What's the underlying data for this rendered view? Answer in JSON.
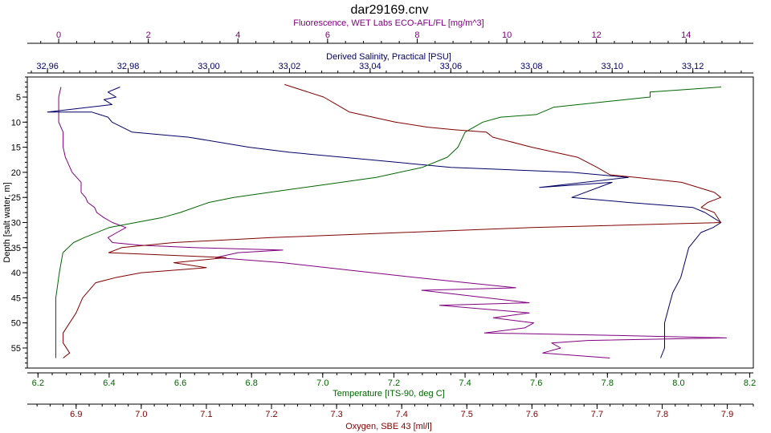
{
  "colors": {
    "fluorescence": "#800080",
    "salinity": "#000066",
    "temperature": "#006600",
    "oxygen": "#800000",
    "depth": "#000000",
    "frame": "#000000",
    "background": "#ffffff"
  },
  "chart_data": {
    "type": "line",
    "title": "dar29169.cnv",
    "grid": false,
    "legend": "none",
    "y_axis": {
      "label": "Depth [salt water, m]",
      "range": [
        1,
        59
      ],
      "inverted": true,
      "ticks": [
        5,
        10,
        15,
        20,
        25,
        30,
        35,
        40,
        45,
        50,
        55
      ]
    },
    "x_axes": [
      {
        "id": "fluorescence",
        "label": "Fluorescence, WET Labs ECO-AFL/FL [mg/m^3]",
        "position": "top",
        "range": [
          -0.7,
          15.5
        ],
        "ticks": [
          0,
          2,
          4,
          6,
          8,
          10,
          12,
          14
        ],
        "tick_labels": [
          "0",
          "2",
          "4",
          "6",
          "8",
          "10",
          "12",
          "14"
        ]
      },
      {
        "id": "salinity",
        "label": "Derived Salinity, Practical [PSU]",
        "position": "top",
        "range": [
          32.955,
          33.135
        ],
        "ticks": [
          32.96,
          32.98,
          33.0,
          33.02,
          33.04,
          33.06,
          33.08,
          33.1,
          33.12
        ],
        "tick_labels": [
          "32.96",
          "32.98",
          "33.00",
          "33.02",
          "33.04",
          "33.06",
          "33.08",
          "33.10",
          "33.12"
        ]
      },
      {
        "id": "temperature",
        "label": "Temperature [ITS-90, deg C]",
        "position": "bottom",
        "range": [
          6.17,
          8.21
        ],
        "ticks": [
          6.2,
          6.4,
          6.6,
          6.8,
          7.0,
          7.2,
          7.4,
          7.6,
          7.8,
          8.0,
          8.2
        ],
        "tick_labels": [
          "6.2",
          "6.4",
          "6.6",
          "6.8",
          "7.0",
          "7.2",
          "7.4",
          "7.6",
          "7.8",
          "8.0",
          "8.2"
        ]
      },
      {
        "id": "oxygen",
        "label": "Oxygen, SBE 43 [ml/l]",
        "position": "bottom",
        "range": [
          6.825,
          7.94
        ],
        "ticks": [
          6.9,
          7.0,
          7.1,
          7.2,
          7.3,
          7.4,
          7.5,
          7.6,
          7.7,
          7.8,
          7.9
        ],
        "tick_labels": [
          "6.9",
          "7.0",
          "7.1",
          "7.2",
          "7.3",
          "7.4",
          "7.5",
          "7.6",
          "7.7",
          "7.8",
          "7.9"
        ]
      }
    ],
    "series": [
      {
        "axis": "fluorescence",
        "color": "#800080",
        "x": [
          0.05,
          0.0,
          0.0,
          0.0,
          0.1,
          0.1,
          0.15,
          0.3,
          0.5,
          0.5,
          0.6,
          0.65,
          0.8,
          0.85,
          1.0,
          1.2,
          1.5,
          1.3,
          1.1,
          1.2,
          1.8,
          3.0,
          5.0,
          4.0,
          3.5,
          5.0,
          6.5,
          8.0,
          10.2,
          8.1,
          10.5,
          8.5,
          10.5,
          9.7,
          10.6,
          10.4,
          9.5,
          12.4,
          14.9,
          11.8,
          11.0,
          11.2,
          10.8,
          12.3
        ],
        "y": [
          3,
          5,
          8,
          10,
          12,
          15,
          17,
          20,
          22,
          24,
          25,
          26,
          27,
          28,
          29,
          30,
          31,
          32,
          33,
          34,
          34.5,
          35,
          35.5,
          36,
          37,
          38,
          39.5,
          41,
          43,
          43.5,
          46,
          46.5,
          48,
          49,
          50,
          51,
          52,
          52.5,
          53,
          53.5,
          54,
          55,
          56,
          57
        ]
      },
      {
        "axis": "salinity",
        "color": "#000066",
        "x": [
          32.978,
          32.975,
          32.977,
          32.974,
          32.976,
          32.96,
          32.971,
          32.975,
          32.976,
          32.981,
          32.995,
          33.01,
          33.02,
          33.04,
          33.06,
          33.09,
          33.104,
          33.082,
          33.1,
          33.09,
          33.104,
          33.12,
          33.123,
          33.127,
          33.125,
          33.122,
          33.121,
          33.119,
          33.118,
          33.117,
          33.115,
          33.114,
          33.113,
          33.113,
          33.113,
          33.112
        ],
        "y": [
          3,
          4,
          5,
          5.5,
          6.5,
          8,
          8,
          9,
          10,
          12,
          13,
          15,
          16,
          17.5,
          19,
          20,
          21,
          23,
          22,
          25,
          26,
          27,
          28,
          30,
          31,
          32,
          33,
          35,
          38,
          41,
          44,
          47,
          50,
          53,
          55,
          57
        ]
      },
      {
        "axis": "temperature",
        "color": "#006600",
        "x": [
          8.12,
          7.92,
          7.92,
          7.65,
          7.6,
          7.5,
          7.45,
          7.4,
          7.38,
          7.35,
          7.28,
          7.15,
          7.0,
          6.9,
          6.75,
          6.68,
          6.6,
          6.55,
          6.4,
          6.33,
          6.3,
          6.27,
          6.26,
          6.25,
          6.25,
          6.25
        ],
        "y": [
          3,
          4,
          5,
          7,
          8.5,
          9,
          10,
          12,
          15,
          17,
          19,
          21,
          22.5,
          23.5,
          25,
          26,
          28,
          29,
          31,
          33,
          34,
          36,
          40,
          45,
          50,
          57
        ]
      },
      {
        "axis": "oxygen",
        "color": "#800000",
        "x": [
          7.22,
          7.28,
          7.32,
          7.39,
          7.44,
          7.48,
          7.53,
          7.54,
          7.6,
          7.67,
          7.7,
          7.72,
          7.76,
          7.83,
          7.88,
          7.89,
          7.87,
          7.86,
          7.88,
          7.89,
          7.6,
          7.4,
          7.2,
          7.05,
          6.97,
          6.95,
          7.13,
          7.05,
          7.1,
          7.0,
          6.96,
          6.93,
          6.91,
          6.9,
          6.89,
          6.88,
          6.88,
          6.89,
          6.88
        ],
        "y": [
          2.5,
          5,
          8,
          10,
          11,
          11.5,
          12,
          13,
          15,
          17,
          19,
          20.5,
          21,
          22,
          24,
          25,
          26,
          27,
          28,
          30,
          31,
          32,
          33,
          34,
          35,
          36,
          37,
          38,
          39,
          40,
          41,
          42,
          45,
          48,
          50,
          52,
          54,
          56,
          57
        ]
      }
    ]
  }
}
